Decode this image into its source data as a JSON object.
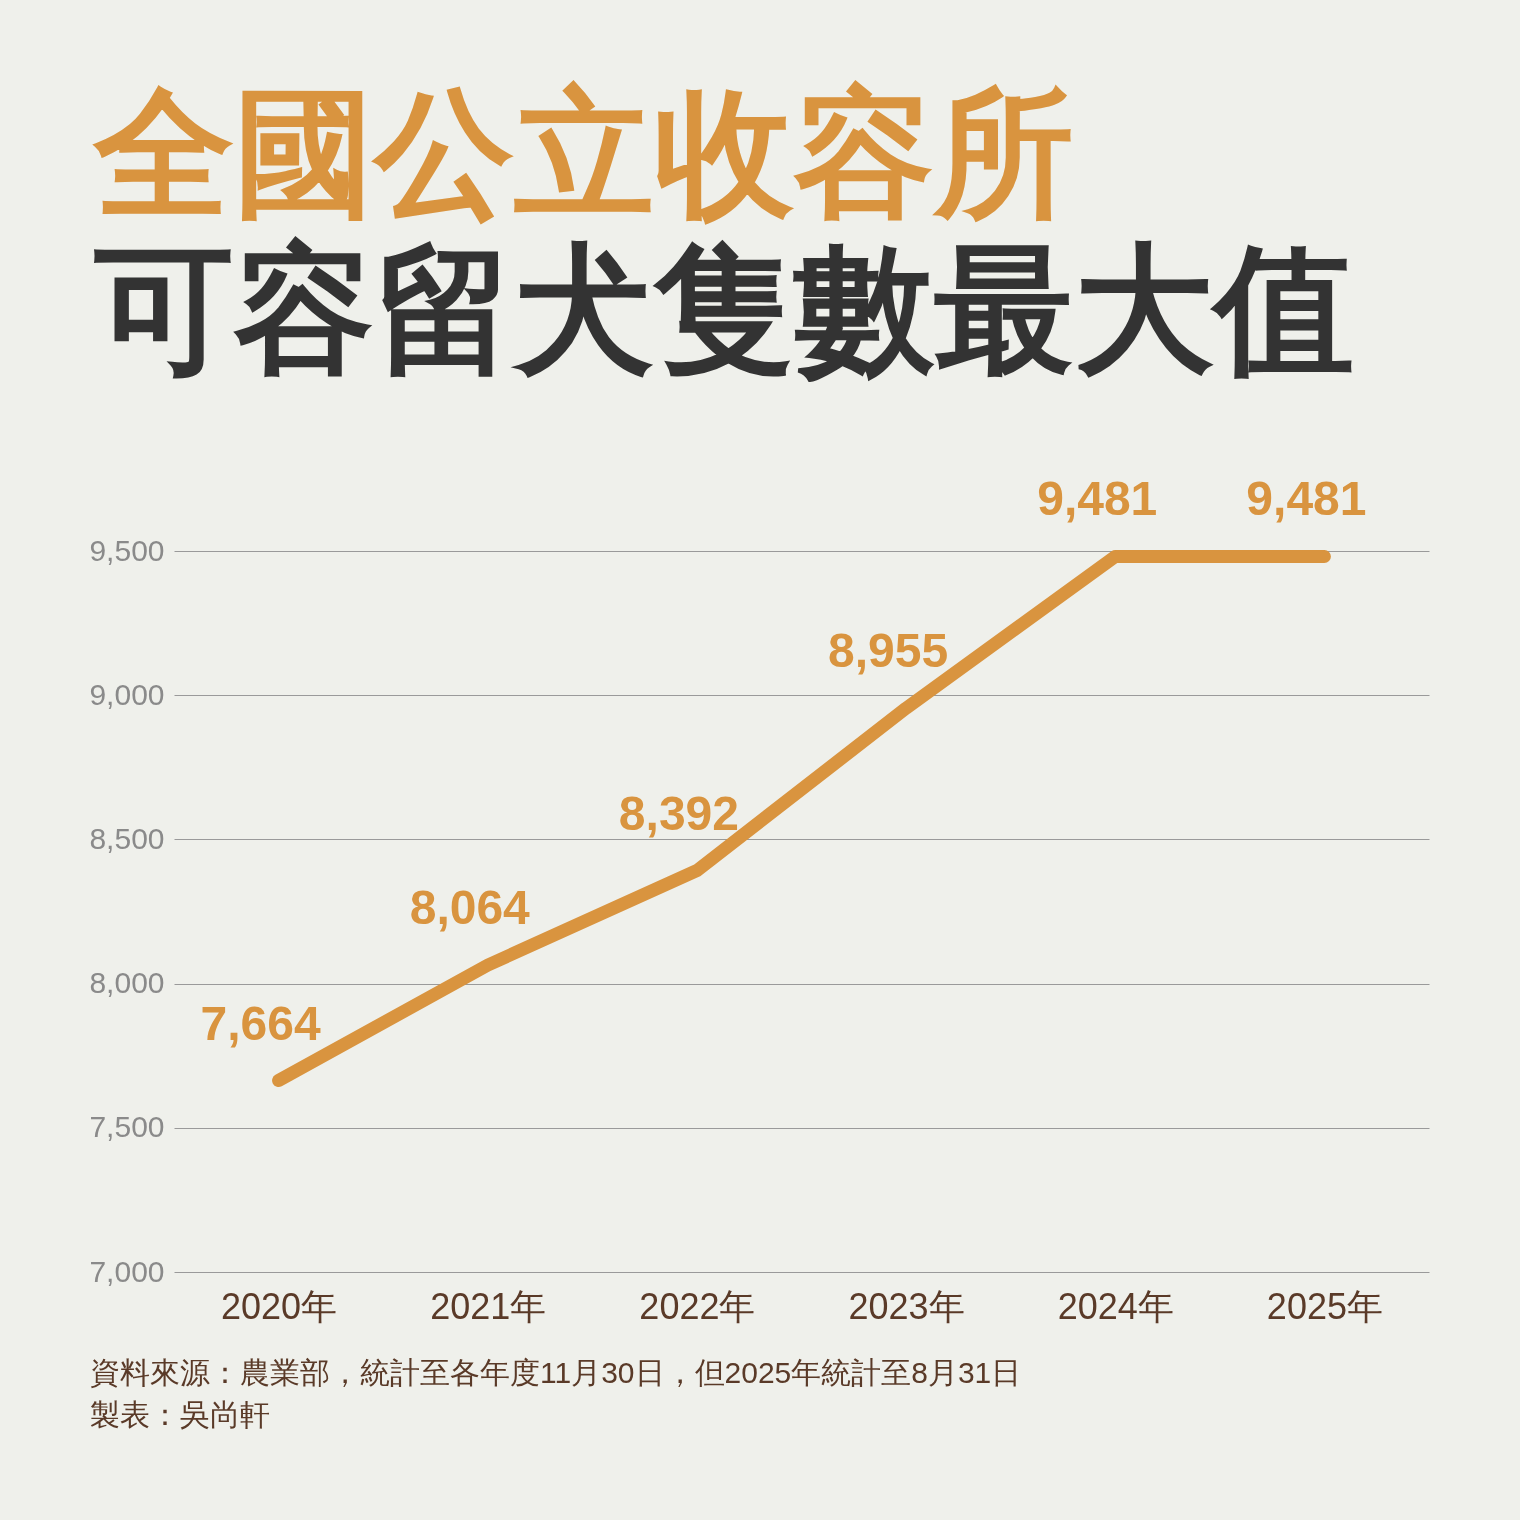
{
  "chart_data": {
    "type": "line",
    "title": "全國公立收容所",
    "subtitle": "可容留犬隻數最大值",
    "categories": [
      "2020年",
      "2021年",
      "2022年",
      "2023年",
      "2024年",
      "2025年"
    ],
    "series": [
      {
        "color": "#d9943f",
        "values": [
          7664,
          8064,
          8392,
          8955,
          9481,
          9481
        ],
        "value_labels": [
          "7,664",
          "8,064",
          "8,392",
          "8,955",
          "9,481",
          "9,481"
        ]
      }
    ],
    "ylim": [
      7000,
      9500
    ],
    "yticks": [
      {
        "value": 7000,
        "label": "7,000"
      },
      {
        "value": 7500,
        "label": "7,500"
      },
      {
        "value": 8000,
        "label": "8,000"
      },
      {
        "value": 8500,
        "label": "8,500"
      },
      {
        "value": 9000,
        "label": "9,000"
      },
      {
        "value": 9500,
        "label": "9,500"
      }
    ],
    "grid": "y",
    "annotations": [
      "資料來源：農業部，統計至各年度11月30日，但2025年統計至8月31日",
      "製表：吳尚軒"
    ]
  }
}
